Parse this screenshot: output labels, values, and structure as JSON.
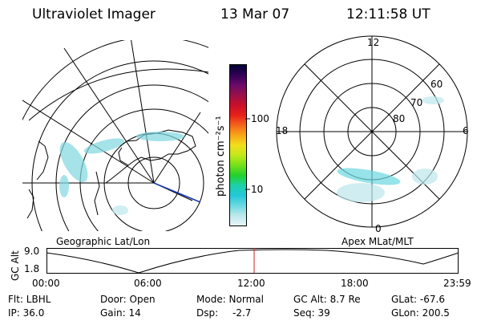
{
  "header": {
    "title": "Ultraviolet Imager",
    "date": "13 Mar 07",
    "time": "12:11:58 UT"
  },
  "colorbar": {
    "label": "photon cm⁻²s⁻¹",
    "ticks": [
      "100",
      "10"
    ],
    "colors": [
      "#000033",
      "#330055",
      "#6a0a6a",
      "#99104a",
      "#c8102a",
      "#e8201a",
      "#f4641a",
      "#f8a618",
      "#f2df1a",
      "#c2e81a",
      "#74e01a",
      "#22d02a",
      "#1ed0a8",
      "#22c8d8",
      "#6ad8e0",
      "#bde8ec",
      "#e8f5f7"
    ]
  },
  "left_map": {
    "caption": "Geographic Lat/Lon"
  },
  "right_map": {
    "caption": "Apex MLat/MLT",
    "mlt_labels": {
      "top": "12",
      "left": "18",
      "right": "6",
      "bottom": "0"
    },
    "lat_labels": [
      "60",
      "70",
      "80"
    ]
  },
  "timeline": {
    "axis_label": "GC Alt",
    "y_ticks": [
      "9.0",
      "1.8"
    ],
    "x_ticks": [
      "00:00",
      "06:00",
      "12:00",
      "18:00",
      "23:59"
    ],
    "marker_color": "#d02020"
  },
  "footer": {
    "row1": {
      "flt": "Flt: LBHL",
      "door": "Door: Open",
      "mode": "Mode: Normal",
      "gc_alt": "GC Alt: 8.7 Re",
      "glat": "GLat: -67.6"
    },
    "row2": {
      "ip": "IP: 36.0",
      "gain": "Gain: 14",
      "dsp_label": "Dsp:",
      "dsp_value": "-2.7",
      "seq": "Seq: 39",
      "glon": "GLon: 200.5"
    }
  }
}
